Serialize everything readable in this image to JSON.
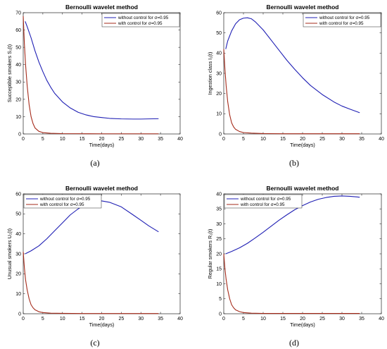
{
  "panel_labels": [
    "(a)",
    "(b)",
    "(c)",
    "(d)"
  ],
  "colors": {
    "without_control": "#1f1fb4",
    "with_control": "#a52a1a",
    "axis": "#262626"
  },
  "chart_data": [
    {
      "type": "line",
      "title": "Bernoulli wavelet method",
      "xlabel": "Time(days)",
      "ylabel": "Succeptible smokers S₁(t)",
      "xlim": [
        0,
        40
      ],
      "ylim": [
        0,
        70
      ],
      "xticks": [
        0,
        5,
        10,
        15,
        20,
        25,
        30,
        35,
        40
      ],
      "yticks": [
        0,
        10,
        20,
        30,
        40,
        50,
        60,
        70
      ],
      "legend_position": "top-right",
      "series": [
        {
          "name": "without control for σ=0.95",
          "color": "#1f1fb4",
          "x": [
            0.5,
            1,
            2,
            3,
            4,
            5,
            6,
            7,
            8,
            10,
            12,
            14,
            16,
            18,
            20,
            22,
            25,
            28,
            30,
            32,
            34.5
          ],
          "y": [
            65,
            62,
            55.5,
            48,
            41.5,
            36,
            31,
            27,
            23.5,
            18.5,
            15,
            12.5,
            11,
            10,
            9.5,
            9,
            8.7,
            8.6,
            8.6,
            8.7,
            8.8
          ]
        },
        {
          "name": "with control for σ=0.95",
          "color": "#a52a1a",
          "x": [
            0,
            0.3,
            0.6,
            1,
            1.5,
            2,
            2.5,
            3,
            4,
            5,
            7,
            10,
            15,
            20,
            25,
            30,
            34.5
          ],
          "y": [
            68,
            52,
            40,
            28,
            17,
            10,
            6,
            3.5,
            1.5,
            0.8,
            0.4,
            0.2,
            0.15,
            0.1,
            0.1,
            0.1,
            0.1
          ]
        }
      ]
    },
    {
      "type": "line",
      "title": "Bernoulli wavelet method",
      "xlabel": "Time(days)",
      "ylabel": "Ingestion class I₁(t)",
      "xlim": [
        0,
        40
      ],
      "ylim": [
        0,
        60
      ],
      "xticks": [
        0,
        5,
        10,
        15,
        20,
        25,
        30,
        35,
        40
      ],
      "yticks": [
        0,
        10,
        20,
        30,
        40,
        50,
        60
      ],
      "legend_position": "top-right",
      "series": [
        {
          "name": "without control for σ=0.95",
          "color": "#1f1fb4",
          "x": [
            0.5,
            1,
            2,
            3,
            4,
            5,
            6,
            7,
            8,
            10,
            12,
            14,
            16,
            18,
            20,
            22,
            25,
            28,
            30,
            32,
            34.5
          ],
          "y": [
            42,
            46,
            51,
            54.5,
            56.5,
            57.3,
            57.5,
            57,
            55.5,
            51.5,
            46.5,
            41.5,
            36.5,
            32,
            27.8,
            24,
            19.5,
            15.8,
            13.8,
            12.3,
            10.5
          ]
        },
        {
          "name": "with control for σ=0.95",
          "color": "#a52a1a",
          "x": [
            0,
            0.3,
            0.6,
            1,
            1.5,
            2,
            2.5,
            3,
            4,
            5,
            7,
            10,
            15,
            20,
            25,
            30,
            34.5
          ],
          "y": [
            42,
            32,
            24,
            16,
            9.5,
            5.5,
            3.5,
            2.3,
            1.2,
            0.7,
            0.4,
            0.2,
            0.1,
            0.1,
            0.1,
            0.1,
            0.1
          ]
        }
      ]
    },
    {
      "type": "line",
      "title": "Bernoulli wavelet method",
      "xlabel": "Time(days)",
      "ylabel": "Unusual smokers U₁(t)",
      "xlim": [
        0,
        40
      ],
      "ylim": [
        0,
        60
      ],
      "xticks": [
        0,
        5,
        10,
        15,
        20,
        25,
        30,
        35,
        40
      ],
      "yticks": [
        0,
        10,
        20,
        30,
        40,
        50,
        60
      ],
      "legend_position": "top-left",
      "series": [
        {
          "name": "without control for σ=0.95",
          "color": "#1f1fb4",
          "x": [
            0.5,
            2,
            4,
            6,
            8,
            10,
            12,
            14,
            16,
            18,
            20,
            22,
            25,
            28,
            30,
            32,
            34.5
          ],
          "y": [
            30,
            31.5,
            34,
            37.5,
            41.5,
            45.5,
            49.5,
            52.5,
            55,
            56.3,
            56.5,
            55.8,
            53.5,
            49.5,
            46.8,
            44,
            41
          ]
        },
        {
          "name": "with control for σ=0.95",
          "color": "#a52a1a",
          "x": [
            0,
            0.3,
            0.6,
            1,
            1.5,
            2,
            2.5,
            3,
            4,
            5,
            7,
            10,
            15,
            20,
            25,
            30,
            34.5
          ],
          "y": [
            31,
            23,
            17,
            12,
            7.5,
            4.5,
            3,
            2,
            1,
            0.6,
            0.3,
            0.2,
            0.1,
            0.1,
            0.1,
            0.1,
            0.1
          ]
        }
      ]
    },
    {
      "type": "line",
      "title": "Bernoulli wavelet method",
      "xlabel": "Time(days)",
      "ylabel": "Regular smokers R₁(t)",
      "xlim": [
        0,
        40
      ],
      "ylim": [
        0,
        40
      ],
      "xticks": [
        0,
        5,
        10,
        15,
        20,
        25,
        30,
        35,
        40
      ],
      "yticks": [
        0,
        5,
        10,
        15,
        20,
        25,
        30,
        35,
        40
      ],
      "legend_position": "top-left",
      "series": [
        {
          "name": "without control for σ=0.95",
          "color": "#1f1fb4",
          "x": [
            0.5,
            2,
            4,
            6,
            8,
            10,
            12,
            14,
            16,
            18,
            20,
            22,
            24,
            26,
            28,
            30,
            32,
            34.5
          ],
          "y": [
            20,
            20.8,
            22,
            23.5,
            25.3,
            27.2,
            29.2,
            31.2,
            33,
            34.7,
            36.1,
            37.3,
            38.2,
            38.8,
            39.2,
            39.3,
            39.2,
            38.9
          ]
        },
        {
          "name": "with control for σ=0.95",
          "color": "#a52a1a",
          "x": [
            0,
            0.3,
            0.6,
            1,
            1.5,
            2,
            2.5,
            3,
            4,
            5,
            7,
            10,
            15,
            20,
            25,
            30,
            34.5
          ],
          "y": [
            20,
            15,
            11.5,
            8,
            5,
            3,
            2,
            1.3,
            0.7,
            0.4,
            0.2,
            0.1,
            0.1,
            0.1,
            0.1,
            0.1,
            0.1
          ]
        }
      ]
    }
  ]
}
